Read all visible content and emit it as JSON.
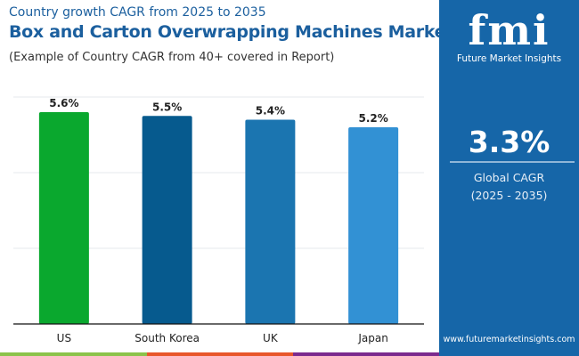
{
  "header": {
    "subtitle": "Country growth CAGR from 2025 to 2035",
    "title": "Box and Carton Overwrapping Machines Market",
    "note": "(Example of Country CAGR from 40+ covered in Report)"
  },
  "sidebar": {
    "logo_text": "fmi",
    "brand": "Future Market Insights",
    "global_value": "3.3%",
    "global_label": "Global CAGR",
    "global_period": "(2025 - 2035)",
    "url": "www.futuremarketinsights.com",
    "bg_color": "#1666a8"
  },
  "chart_data": {
    "type": "bar",
    "categories": [
      "US",
      "South Korea",
      "UK",
      "Japan"
    ],
    "values": [
      5.6,
      5.5,
      5.4,
      5.2
    ],
    "data_labels": [
      "5.6%",
      "5.5%",
      "5.4%",
      "5.2%"
    ],
    "colors": [
      "#0aa82e",
      "#065a8e",
      "#1b75b0",
      "#3291d4"
    ],
    "ylim": [
      0,
      6
    ],
    "grid": true,
    "xlabel": "",
    "ylabel": ""
  }
}
